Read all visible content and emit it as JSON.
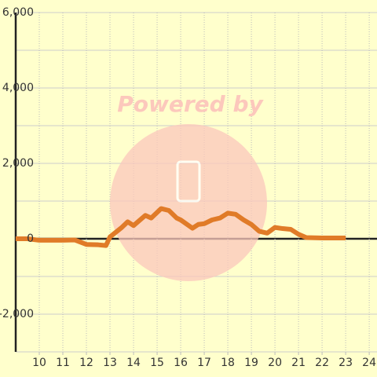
{
  "chart_data": {
    "type": "line",
    "watermark": "Powered by",
    "x": [
      9,
      9.5,
      10,
      10.5,
      11,
      11.5,
      12,
      12.5,
      12.83,
      13,
      13.5,
      13.75,
      14,
      14.5,
      14.75,
      15.17,
      15.5,
      15.83,
      16,
      16.5,
      16.75,
      17,
      17.33,
      17.67,
      18,
      18.33,
      18.67,
      19,
      19.33,
      19.67,
      20,
      20.33,
      20.67,
      21,
      21.33,
      22,
      22.5,
      23
    ],
    "series": [
      {
        "color": "#e07b28",
        "values": [
          0,
          0,
          -40,
          -40,
          -40,
          -30,
          -150,
          -160,
          -180,
          50,
          300,
          450,
          350,
          620,
          550,
          800,
          750,
          550,
          500,
          280,
          380,
          400,
          500,
          550,
          680,
          650,
          500,
          380,
          200,
          150,
          300,
          270,
          250,
          120,
          30,
          20,
          20,
          20
        ]
      }
    ],
    "xlim": [
      9,
      24.33
    ],
    "xticks": [
      10,
      11,
      12,
      13,
      14,
      15,
      16,
      17,
      18,
      19,
      20,
      21,
      22,
      23,
      24
    ],
    "ylim": [
      -3000,
      6000
    ],
    "yticks": [
      {
        "value": 6000,
        "label": "6,000"
      },
      {
        "value": 4000,
        "label": "4,000"
      },
      {
        "value": 2000,
        "label": "2,000"
      },
      0,
      {
        "value": -2000,
        "label": "-2,000"
      }
    ],
    "minor_yticks": [
      5000,
      3000,
      1000,
      -1000,
      -3000
    ],
    "grid": true
  }
}
